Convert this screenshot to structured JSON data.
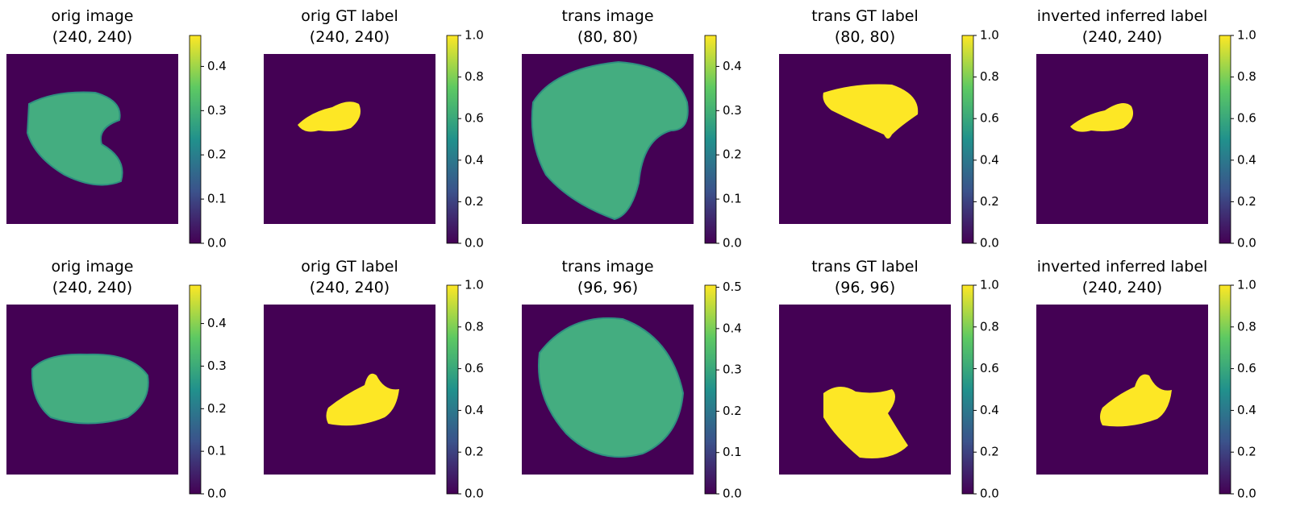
{
  "chart_data": [
    {
      "type": "image",
      "title": "orig image",
      "subtitle": "(240, 240)",
      "kind": "image",
      "colormap": "viridis",
      "ylim": [
        0,
        0.47
      ],
      "yticks": [
        {
          "value": 0,
          "label": "0.0"
        },
        0.1,
        0.2,
        0.3,
        0.4
      ]
    },
    {
      "type": "image",
      "title": "orig GT label",
      "subtitle": "(240, 240)",
      "kind": "label",
      "colormap": "viridis",
      "ylim": [
        0,
        1
      ],
      "yticks": [
        {
          "value": 0,
          "label": "0.0"
        },
        0.2,
        0.4,
        0.6,
        0.8,
        {
          "value": 1,
          "label": "1.0"
        }
      ]
    },
    {
      "type": "image",
      "title": "trans image",
      "subtitle": "(80, 80)",
      "kind": "image",
      "colormap": "viridis",
      "ylim": [
        0,
        0.47
      ],
      "yticks": [
        {
          "value": 0,
          "label": "0.0"
        },
        0.1,
        0.2,
        0.3,
        0.4
      ]
    },
    {
      "type": "image",
      "title": "trans GT label",
      "subtitle": "(80, 80)",
      "kind": "label",
      "colormap": "viridis",
      "ylim": [
        0,
        1
      ],
      "yticks": [
        {
          "value": 0,
          "label": "0.0"
        },
        0.2,
        0.4,
        0.6,
        0.8,
        {
          "value": 1,
          "label": "1.0"
        }
      ]
    },
    {
      "type": "image",
      "title": "inverted inferred label",
      "subtitle": "(240, 240)",
      "kind": "label",
      "colormap": "viridis",
      "ylim": [
        0,
        1
      ],
      "yticks": [
        {
          "value": 0,
          "label": "0.0"
        },
        0.2,
        0.4,
        0.6,
        0.8,
        {
          "value": 1,
          "label": "1.0"
        }
      ]
    },
    {
      "type": "image",
      "title": "orig image",
      "subtitle": "(240, 240)",
      "kind": "image",
      "colormap": "viridis",
      "ylim": [
        0,
        0.49
      ],
      "yticks": [
        {
          "value": 0,
          "label": "0.0"
        },
        0.1,
        0.2,
        0.3,
        0.4
      ]
    },
    {
      "type": "image",
      "title": "orig GT label",
      "subtitle": "(240, 240)",
      "kind": "label",
      "colormap": "viridis",
      "ylim": [
        0,
        1
      ],
      "yticks": [
        {
          "value": 0,
          "label": "0.0"
        },
        0.2,
        0.4,
        0.6,
        0.8,
        {
          "value": 1,
          "label": "1.0"
        }
      ]
    },
    {
      "type": "image",
      "title": "trans image",
      "subtitle": "(96, 96)",
      "kind": "image",
      "colormap": "viridis",
      "ylim": [
        0,
        0.505
      ],
      "yticks": [
        {
          "value": 0,
          "label": "0.0"
        },
        0.1,
        0.2,
        0.3,
        0.4,
        0.5
      ]
    },
    {
      "type": "image",
      "title": "trans GT label",
      "subtitle": "(96, 96)",
      "kind": "label",
      "colormap": "viridis",
      "ylim": [
        0,
        1
      ],
      "yticks": [
        {
          "value": 0,
          "label": "0.0"
        },
        0.2,
        0.4,
        0.6,
        0.8,
        {
          "value": 1,
          "label": "1.0"
        }
      ]
    },
    {
      "type": "image",
      "title": "inverted inferred label",
      "subtitle": "(240, 240)",
      "kind": "label",
      "colormap": "viridis",
      "ylim": [
        0,
        1
      ],
      "yticks": [
        {
          "value": 0,
          "label": "0.0"
        },
        0.2,
        0.4,
        0.6,
        0.8,
        {
          "value": 1,
          "label": "1.0"
        }
      ]
    }
  ]
}
